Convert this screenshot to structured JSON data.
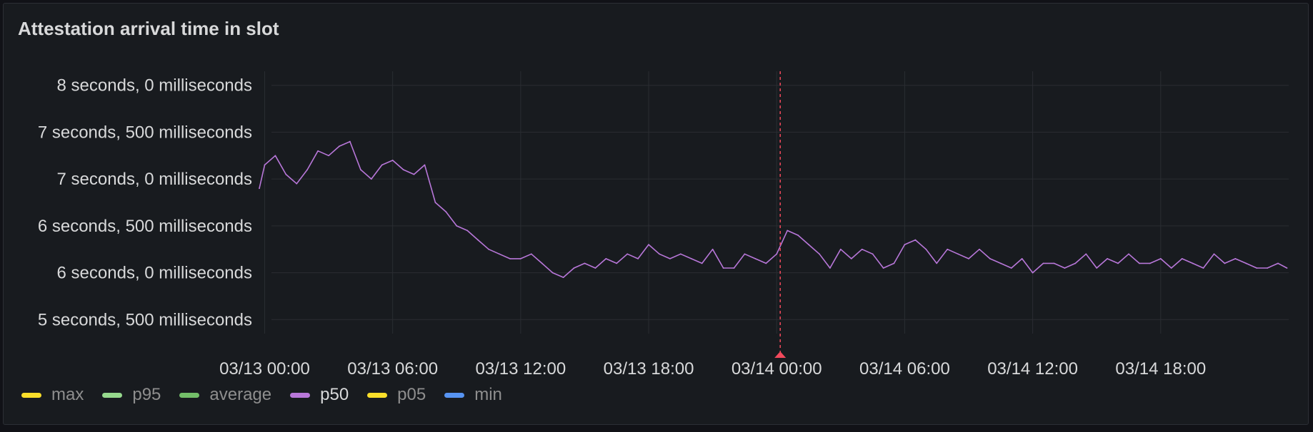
{
  "panel": {
    "title": "Attestation arrival time in slot"
  },
  "chart_data": {
    "type": "line",
    "title": "Attestation arrival time in slot",
    "y_unit": "milliseconds",
    "ylim": [
      5350,
      8150
    ],
    "y_ticks": [
      {
        "value": 8000,
        "label": "8 seconds, 0 milliseconds"
      },
      {
        "value": 7500,
        "label": "7 seconds, 500 milliseconds"
      },
      {
        "value": 7000,
        "label": "7 seconds, 0 milliseconds"
      },
      {
        "value": 6500,
        "label": "6 seconds, 500 milliseconds"
      },
      {
        "value": 6000,
        "label": "6 seconds, 0 milliseconds"
      },
      {
        "value": 5500,
        "label": "5 seconds, 500 milliseconds"
      }
    ],
    "xlim": [
      "03/12 23:45",
      "03/15 00:00"
    ],
    "x_ticks": [
      {
        "value": "03/13 00:00",
        "label": "03/13 00:00"
      },
      {
        "value": "03/13 06:00",
        "label": "03/13 06:00"
      },
      {
        "value": "03/13 12:00",
        "label": "03/13 12:00"
      },
      {
        "value": "03/13 18:00",
        "label": "03/13 18:00"
      },
      {
        "value": "03/14 00:00",
        "label": "03/14 00:00"
      },
      {
        "value": "03/14 06:00",
        "label": "03/14 06:00"
      },
      {
        "value": "03/14 12:00",
        "label": "03/14 12:00"
      },
      {
        "value": "03/14 18:00",
        "label": "03/14 18:00"
      }
    ],
    "grid": true,
    "annotation": {
      "x": "03/14 00:10",
      "color": "#f2495c"
    },
    "series": [
      {
        "name": "p50",
        "color": "#b877d9",
        "x": [
          "03/12 23:45",
          "03/13 00:00",
          "03/13 00:30",
          "03/13 01:00",
          "03/13 01:30",
          "03/13 02:00",
          "03/13 02:30",
          "03/13 03:00",
          "03/13 03:30",
          "03/13 04:00",
          "03/13 04:30",
          "03/13 05:00",
          "03/13 05:30",
          "03/13 06:00",
          "03/13 06:30",
          "03/13 07:00",
          "03/13 07:30",
          "03/13 08:00",
          "03/13 08:30",
          "03/13 09:00",
          "03/13 09:30",
          "03/13 10:00",
          "03/13 10:30",
          "03/13 11:00",
          "03/13 11:30",
          "03/13 12:00",
          "03/13 12:30",
          "03/13 13:00",
          "03/13 13:30",
          "03/13 14:00",
          "03/13 14:30",
          "03/13 15:00",
          "03/13 15:30",
          "03/13 16:00",
          "03/13 16:30",
          "03/13 17:00",
          "03/13 17:30",
          "03/13 18:00",
          "03/13 18:30",
          "03/13 19:00",
          "03/13 19:30",
          "03/13 20:00",
          "03/13 20:30",
          "03/13 21:00",
          "03/13 21:30",
          "03/13 22:00",
          "03/13 22:30",
          "03/13 23:00",
          "03/13 23:30",
          "03/14 00:00",
          "03/14 00:30",
          "03/14 01:00",
          "03/14 01:30",
          "03/14 02:00",
          "03/14 02:30",
          "03/14 03:00",
          "03/14 03:30",
          "03/14 04:00",
          "03/14 04:30",
          "03/14 05:00",
          "03/14 05:30",
          "03/14 06:00",
          "03/14 06:30",
          "03/14 07:00",
          "03/14 07:30",
          "03/14 08:00",
          "03/14 08:30",
          "03/14 09:00",
          "03/14 09:30",
          "03/14 10:00",
          "03/14 10:30",
          "03/14 11:00",
          "03/14 11:30",
          "03/14 12:00",
          "03/14 12:30",
          "03/14 13:00",
          "03/14 13:30",
          "03/14 14:00",
          "03/14 14:30",
          "03/14 15:00",
          "03/14 15:30",
          "03/14 16:00",
          "03/14 16:30",
          "03/14 17:00",
          "03/14 17:30",
          "03/14 18:00",
          "03/14 18:30",
          "03/14 19:00",
          "03/14 19:30",
          "03/14 20:00",
          "03/14 20:30",
          "03/14 21:00",
          "03/14 21:30",
          "03/14 22:00",
          "03/14 22:30",
          "03/14 23:00",
          "03/14 23:30",
          "03/14 23:55"
        ],
        "values": [
          6900,
          7150,
          7250,
          7050,
          6950,
          7100,
          7300,
          7250,
          7350,
          7400,
          7100,
          7000,
          7150,
          7200,
          7100,
          7050,
          7150,
          6750,
          6650,
          6500,
          6450,
          6350,
          6250,
          6200,
          6150,
          6150,
          6200,
          6100,
          6000,
          5950,
          6050,
          6100,
          6050,
          6150,
          6100,
          6200,
          6150,
          6300,
          6200,
          6150,
          6200,
          6150,
          6100,
          6250,
          6050,
          6050,
          6200,
          6150,
          6100,
          6200,
          6450,
          6400,
          6300,
          6200,
          6050,
          6250,
          6150,
          6250,
          6200,
          6050,
          6100,
          6300,
          6350,
          6250,
          6100,
          6250,
          6200,
          6150,
          6250,
          6150,
          6100,
          6050,
          6150,
          6000,
          6100,
          6100,
          6050,
          6100,
          6200,
          6050,
          6150,
          6100,
          6200,
          6100,
          6100,
          6150,
          6050,
          6150,
          6100,
          6050,
          6200,
          6100,
          6150,
          6100,
          6050,
          6050,
          6100,
          6050
        ]
      }
    ],
    "legend": {
      "placement": "bottom-left",
      "items": [
        {
          "name": "max",
          "color": "#fade2a"
        },
        {
          "name": "p95",
          "color": "#96d98d"
        },
        {
          "name": "average",
          "color": "#73bf69"
        },
        {
          "name": "p50",
          "color": "#b877d9"
        },
        {
          "name": "p05",
          "color": "#fade2a"
        },
        {
          "name": "min",
          "color": "#5794f2"
        }
      ]
    }
  }
}
